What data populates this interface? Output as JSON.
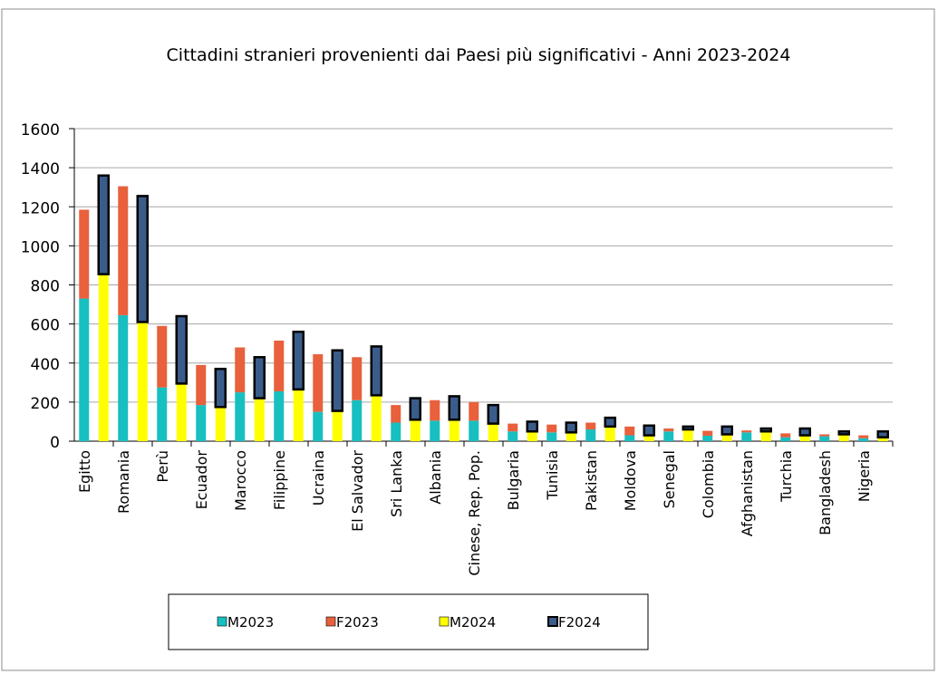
{
  "chart_data": {
    "type": "bar",
    "title": "Cittadini stranieri provenienti dai Paesi più significativi - Anni 2023-2024",
    "xlabel": "",
    "ylabel": "",
    "ylim": [
      0,
      1600
    ],
    "yticks": [
      0,
      200,
      400,
      600,
      800,
      1000,
      1200,
      1400,
      1600
    ],
    "grid": true,
    "legend_position": "bottom",
    "categories": [
      "Egitto",
      "Romania",
      "Perù",
      "Ecuador",
      "Marocco",
      "Filippine",
      "Ucraina",
      "El Salvador",
      "Sri Lanka",
      "Albania",
      "Cinese, Rep. Pop.",
      "Bulgaria",
      "Tunisia",
      "Pakistan",
      "Moldova",
      "Senegal",
      "Colombia",
      "Afghanistan",
      "Turchia",
      "Bangladesh",
      "Nigeria"
    ],
    "stacks": [
      {
        "name": "2023",
        "series": [
          "M2023",
          "F2023"
        ]
      },
      {
        "name": "2024",
        "series": [
          "M2024",
          "F2024"
        ]
      }
    ],
    "series": [
      {
        "name": "M2023",
        "color": "#17BFC1",
        "values": [
          730,
          645,
          275,
          185,
          250,
          255,
          150,
          210,
          95,
          105,
          105,
          50,
          45,
          60,
          30,
          50,
          28,
          45,
          20,
          25,
          15
        ]
      },
      {
        "name": "F2023",
        "color": "#E8603C",
        "values": [
          455,
          660,
          315,
          205,
          230,
          260,
          295,
          220,
          90,
          105,
          95,
          40,
          40,
          35,
          45,
          15,
          25,
          10,
          20,
          10,
          15
        ]
      },
      {
        "name": "M2024",
        "color": "#FFFF00",
        "values": [
          855,
          610,
          295,
          175,
          220,
          265,
          155,
          235,
          110,
          110,
          90,
          50,
          45,
          75,
          30,
          60,
          35,
          50,
          30,
          35,
          20
        ]
      },
      {
        "name": "F2024",
        "color": "#3A5C8A",
        "values": [
          505,
          645,
          345,
          195,
          210,
          295,
          310,
          250,
          110,
          120,
          95,
          50,
          50,
          45,
          50,
          15,
          40,
          15,
          35,
          15,
          30
        ]
      }
    ]
  }
}
